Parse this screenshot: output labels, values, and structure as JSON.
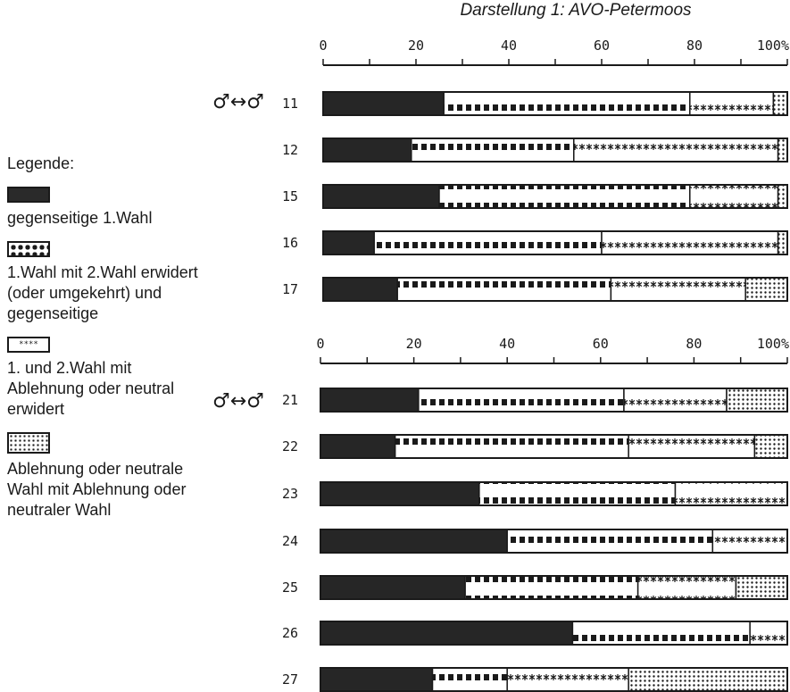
{
  "legend": {
    "title": "Legende:",
    "items": [
      {
        "text": "gegenseitige 1.Wahl",
        "pattern": "solid"
      },
      {
        "text": "1.Wahl mit 2.Wahl erwidert (oder umgekehrt) und gegenseitige",
        "pattern": "squares"
      },
      {
        "text": "1. und 2.Wahl mit Ablehnung oder neutral erwidert",
        "pattern": "stars"
      },
      {
        "text": "Ablehnung oder neutrale Wahl mit Ablehnung oder neutraler Wahl",
        "pattern": "dots",
        "star_glyph": "****"
      }
    ]
  },
  "chart_data": [
    {
      "type": "bar",
      "orientation": "horizontal",
      "stacked": true,
      "title": "Darstellung 1: AVO-Petermoos",
      "group_label": "♂↔♂",
      "xlim": [
        0,
        100
      ],
      "tick_labels": [
        "0",
        "20",
        "40",
        "60",
        "80",
        "100%"
      ],
      "categories": [
        "11",
        "12",
        "15",
        "16",
        "17"
      ],
      "series": [
        {
          "pattern": "solid",
          "values": [
            26,
            19,
            25,
            11,
            16
          ]
        },
        {
          "pattern": "squares",
          "values": [
            53,
            35,
            54,
            49,
            46
          ]
        },
        {
          "pattern": "stars",
          "values": [
            18,
            44,
            19,
            38,
            29
          ]
        },
        {
          "pattern": "dots",
          "values": [
            3,
            2,
            2,
            2,
            9
          ]
        }
      ]
    },
    {
      "type": "bar",
      "orientation": "horizontal",
      "stacked": true,
      "title": "",
      "group_label": "♂↔♂",
      "xlim": [
        0,
        100
      ],
      "tick_labels": [
        "0",
        "20",
        "40",
        "60",
        "80",
        "100%"
      ],
      "categories": [
        "21",
        "22",
        "23",
        "24",
        "25",
        "26",
        "27"
      ],
      "series": [
        {
          "pattern": "solid",
          "values": [
            21,
            16,
            34,
            40,
            31,
            54,
            24
          ]
        },
        {
          "pattern": "squares",
          "values": [
            44,
            50,
            42,
            44,
            37,
            38,
            16
          ]
        },
        {
          "pattern": "stars",
          "values": [
            22,
            27,
            24,
            16,
            21,
            8,
            26
          ]
        },
        {
          "pattern": "dots",
          "values": [
            13,
            7,
            0,
            0,
            11,
            0,
            34
          ]
        }
      ]
    }
  ]
}
